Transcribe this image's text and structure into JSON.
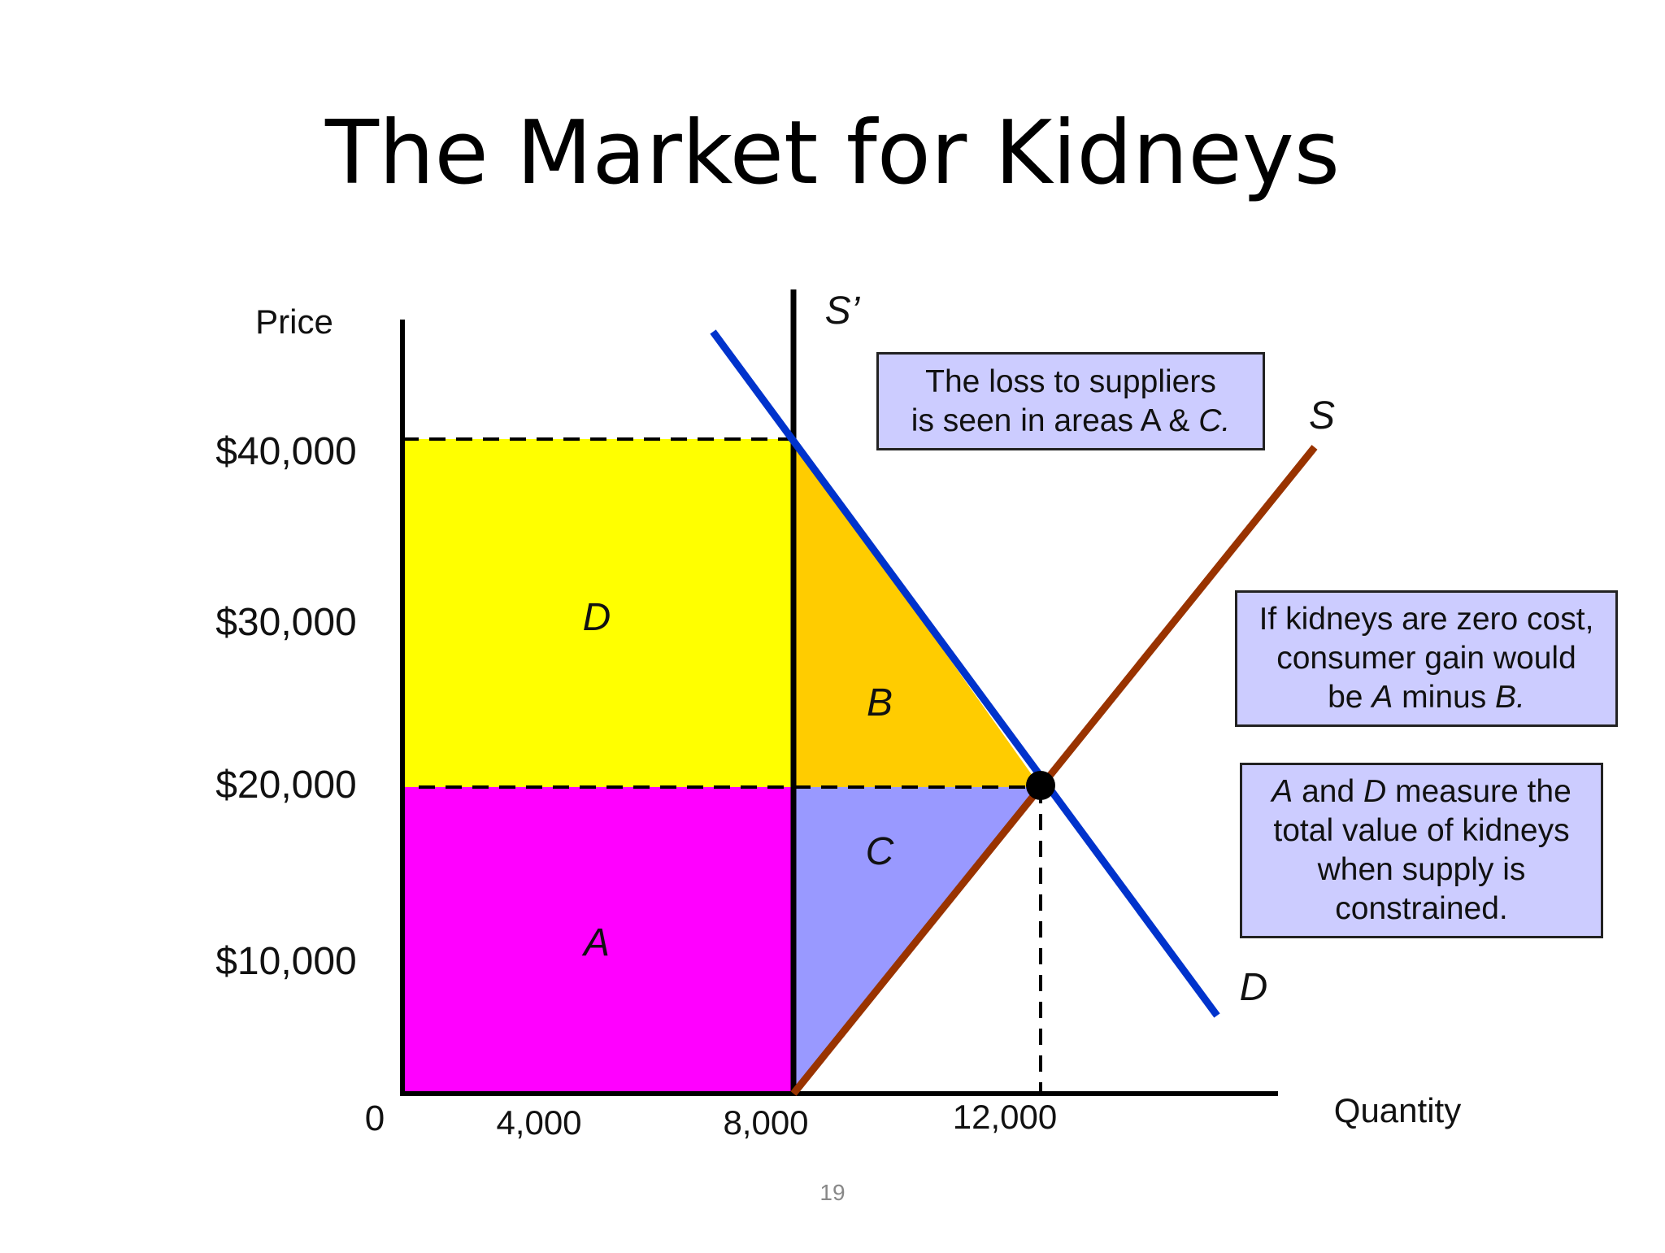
{
  "title": "The Market for Kidneys",
  "page_number": "19",
  "colors": {
    "area_A": "#ff00ff",
    "area_D": "#ffff00",
    "area_B": "#ffcc00",
    "area_C": "#9999ff",
    "demand": "#0033cc",
    "supply": "#993300",
    "note_bg": "#ccccff"
  },
  "axes": {
    "y_label": "Price",
    "x_label": "Quantity",
    "origin": "0",
    "y_ticks": [
      "$40,000",
      "$30,000",
      "$20,000",
      "$10,000"
    ],
    "x_ticks": [
      "4,000",
      "8,000",
      "12,000"
    ]
  },
  "curves": {
    "supply_constrained": "S’",
    "supply": "S",
    "demand": "D"
  },
  "areas": {
    "A": "A",
    "B": "B",
    "C": "C",
    "D": "D"
  },
  "notes": {
    "loss": {
      "line1": "The loss to suppliers",
      "line2_pre": "is seen in areas A & ",
      "line2_em": "C."
    },
    "zero_cost": {
      "line1": "If kidneys are zero cost,",
      "line2": "consumer gain would",
      "line3_pre": "be ",
      "line3_em1": "A",
      "line3_mid": " minus ",
      "line3_em2": "B."
    },
    "value": {
      "line1_em1": "A",
      "line1_mid": " and ",
      "line1_em2": "D",
      "line1_post": " measure the",
      "line2": "total value of kidneys",
      "line3": "when supply is",
      "line4": "constrained."
    }
  },
  "chart_data": {
    "type": "line",
    "title": "The Market for Kidneys",
    "xlabel": "Quantity",
    "ylabel": "Price",
    "x_ticks": [
      4000,
      8000,
      12000
    ],
    "y_ticks": [
      10000,
      20000,
      30000,
      40000
    ],
    "equilibrium": {
      "x": 12000,
      "y": 20000
    },
    "constrained_quantity": 8000,
    "constrained_price": 40000,
    "series": [
      {
        "name": "S’",
        "kind": "vertical",
        "x": 8000
      },
      {
        "name": "S",
        "points": [
          [
            8000,
            0
          ],
          [
            12000,
            20000
          ]
        ]
      },
      {
        "name": "D",
        "points": [
          [
            8000,
            40000
          ],
          [
            12000,
            20000
          ]
        ]
      }
    ],
    "areas": [
      "A",
      "B",
      "C",
      "D"
    ],
    "grid": false
  }
}
